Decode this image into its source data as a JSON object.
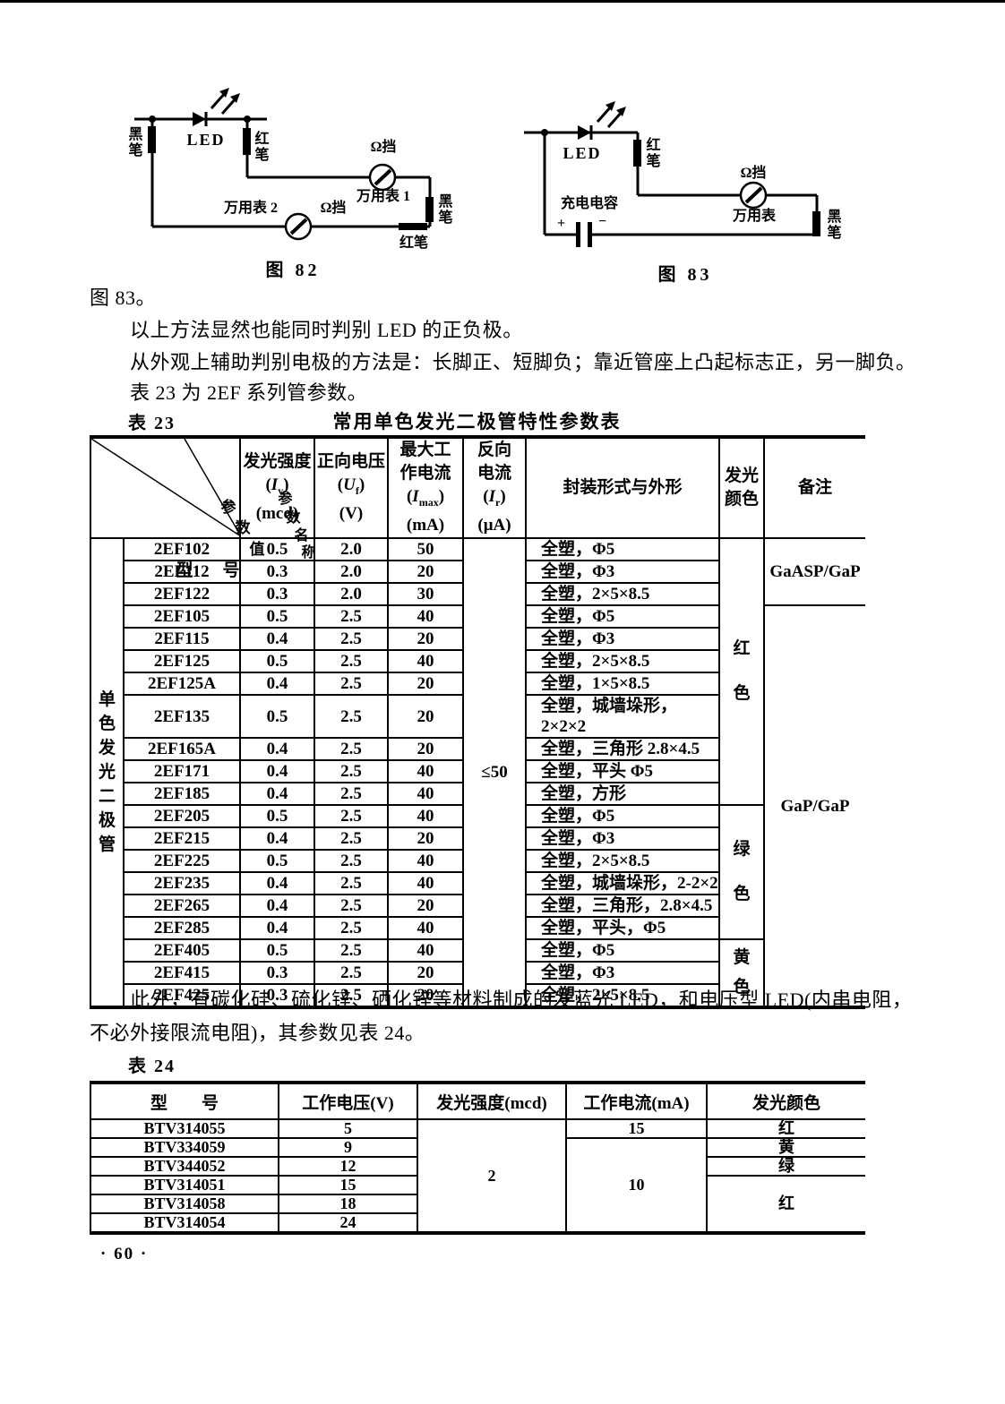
{
  "figures": {
    "fig82": {
      "caption": "图 82",
      "labels": {
        "black_pen_left": "黑笔",
        "led": "LED",
        "red_pen_top": "红笔",
        "ohm1": "Ω挡",
        "meter1": "万用表 1",
        "black_pen_right": "黑笔",
        "red_pen_bottom": "红笔",
        "meter2": "万用表 2",
        "ohm2": "Ω挡"
      }
    },
    "fig83": {
      "caption": "图 83",
      "labels": {
        "led": "LED",
        "red_pen": "红笔",
        "capacitor": "充电电容",
        "plus": "+",
        "minus": "−",
        "ohm": "Ω挡",
        "meter": "万用表",
        "black_pen": "黑笔"
      }
    }
  },
  "paragraphs": {
    "p1": "图 83。",
    "p2": "以上方法显然也能同时判别 LED 的正负极。",
    "p3": "从外观上辅助判别电极的方法是：长脚正、短脚负；靠近管座上凸起标志正，另一脚负。",
    "p4": "表 23 为 2EF 系列管参数。",
    "p5_line1": "此外，有碳化硅、硫化锌、硒化锌等材料制成的发蓝光 LED，和电压型 LED(内串电阻，",
    "p5_line2": "不必外接限流电阻)，其参数见表 24。"
  },
  "table23": {
    "label": "表 23",
    "title": "常用单色发光二极管特性参数表",
    "corner": {
      "param_name": "参数名称",
      "param_value": "参数值",
      "model": "型号"
    },
    "headers": {
      "iv": {
        "l1": "发光强度",
        "pre": "(",
        "sym": "I",
        "sub": "v",
        "post": ")",
        "unit": "(mcd)"
      },
      "uf": {
        "l1": "正向电压",
        "pre": "(",
        "sym": "U",
        "sub": "f",
        "post": ")",
        "unit": "(V)"
      },
      "imax": {
        "l1": "最大工",
        "l2": "作电流",
        "pre": "(",
        "sym": "I",
        "sub": "max",
        "post": ")",
        "unit": "(mA)"
      },
      "ir": {
        "l1": "反向",
        "l2": "电流",
        "pre": "(",
        "sym": "I",
        "sub": "r",
        "post": ")",
        "unit": "(μA)"
      },
      "package": {
        "l1": "封装形式与外形"
      },
      "color": {
        "l1": "发光",
        "l2": "颜色"
      },
      "remark": {
        "l1": "备注"
      }
    },
    "side_label": "单色发光二极管",
    "reverse_current": "≤50",
    "rows": [
      {
        "type": "2EF102",
        "iv": "0.5",
        "uf": "2.0",
        "imax": "50",
        "package": "全塑，Φ5"
      },
      {
        "type": "2EF112",
        "iv": "0.3",
        "uf": "2.0",
        "imax": "20",
        "package": "全塑，Φ3"
      },
      {
        "type": "2EF122",
        "iv": "0.3",
        "uf": "2.0",
        "imax": "30",
        "package": "全塑，2×5×8.5"
      },
      {
        "type": "2EF105",
        "iv": "0.5",
        "uf": "2.5",
        "imax": "40",
        "package": "全塑，Φ5"
      },
      {
        "type": "2EF115",
        "iv": "0.4",
        "uf": "2.5",
        "imax": "20",
        "package": "全塑，Φ3"
      },
      {
        "type": "2EF125",
        "iv": "0.5",
        "uf": "2.5",
        "imax": "40",
        "package": "全塑，2×5×8.5"
      },
      {
        "type": "2EF125A",
        "iv": "0.4",
        "uf": "2.5",
        "imax": "20",
        "package": "全塑，1×5×8.5"
      },
      {
        "type": "2EF135",
        "iv": "0.5",
        "uf": "2.5",
        "imax": "20",
        "package": "全塑，城墙垛形，2×2×2"
      },
      {
        "type": "2EF165A",
        "iv": "0.4",
        "uf": "2.5",
        "imax": "20",
        "package": "全塑，三角形 2.8×4.5"
      },
      {
        "type": "2EF171",
        "iv": "0.4",
        "uf": "2.5",
        "imax": "40",
        "package": "全塑，平头 Φ5"
      },
      {
        "type": "2EF185",
        "iv": "0.4",
        "uf": "2.5",
        "imax": "40",
        "package": "全塑，方形"
      },
      {
        "type": "2EF205",
        "iv": "0.5",
        "uf": "2.5",
        "imax": "40",
        "package": "全塑，Φ5"
      },
      {
        "type": "2EF215",
        "iv": "0.4",
        "uf": "2.5",
        "imax": "20",
        "package": "全塑，Φ3"
      },
      {
        "type": "2EF225",
        "iv": "0.5",
        "uf": "2.5",
        "imax": "40",
        "package": "全塑，2×5×8.5"
      },
      {
        "type": "2EF235",
        "iv": "0.4",
        "uf": "2.5",
        "imax": "40",
        "package": "全塑，城墙垛形，2-2×2"
      },
      {
        "type": "2EF265",
        "iv": "0.4",
        "uf": "2.5",
        "imax": "20",
        "package": "全塑，三角形，2.8×4.5"
      },
      {
        "type": "2EF285",
        "iv": "0.4",
        "uf": "2.5",
        "imax": "40",
        "package": "全塑，平头，Φ5"
      },
      {
        "type": "2EF405",
        "iv": "0.5",
        "uf": "2.5",
        "imax": "40",
        "package": "全塑，Φ5"
      },
      {
        "type": "2EF415",
        "iv": "0.3",
        "uf": "2.5",
        "imax": "20",
        "package": "全塑，Φ3"
      },
      {
        "type": "2EF425",
        "iv": "0.3",
        "uf": "2.5",
        "imax": "20",
        "package": "全塑，2×5×8.5"
      }
    ],
    "color_groups": [
      {
        "text": "红色",
        "span": 11
      },
      {
        "text": "绿色",
        "span": 6
      },
      {
        "text": "黄色",
        "span": 3
      }
    ],
    "remark_groups": [
      {
        "text": "GaASP/GaP",
        "span": 3
      },
      {
        "text": "GaP/GaP",
        "span": 17
      }
    ]
  },
  "table24": {
    "label": "表 24",
    "headers": {
      "model": "型　　号",
      "voltage": "工作电压(V)",
      "intensity": "发光强度(mcd)",
      "current": "工作电流(mA)",
      "color": "发光颜色"
    },
    "rows": [
      {
        "model": "BTV314055",
        "voltage": "5"
      },
      {
        "model": "BTV334059",
        "voltage": "9"
      },
      {
        "model": "BTV344052",
        "voltage": "12"
      },
      {
        "model": "BTV314051",
        "voltage": "15"
      },
      {
        "model": "BTV314058",
        "voltage": "18"
      },
      {
        "model": "BTV314054",
        "voltage": "24"
      }
    ],
    "intensity_value": "2",
    "current_groups": [
      {
        "text": "15",
        "span": 1
      },
      {
        "text": "10",
        "span": 5
      }
    ],
    "color_groups": [
      {
        "text": "红",
        "span": 1
      },
      {
        "text": "黄",
        "span": 1
      },
      {
        "text": "绿",
        "span": 1
      },
      {
        "text": "红",
        "span": 3
      }
    ]
  },
  "footer": {
    "page_number": "· 60 ·"
  }
}
